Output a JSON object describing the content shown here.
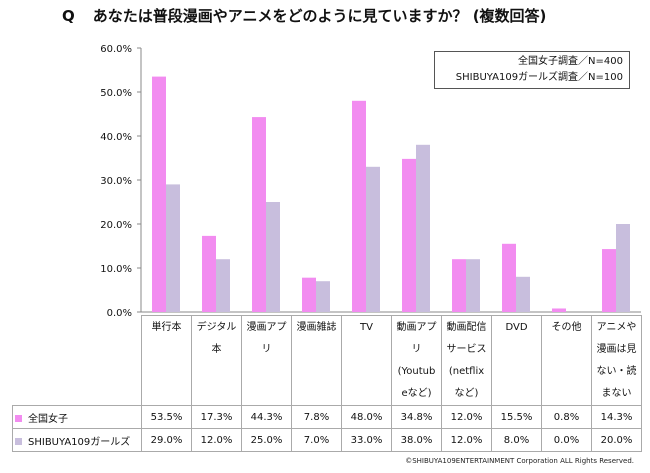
{
  "header": {
    "q_label": "Q",
    "title": "あなたは普段漫画やアニメをどのように見ていますか？ (複数回答)"
  },
  "legend": {
    "line1": "全国女子調査／N=400",
    "line2": "SHIBUYA109ガールズ調査／N=100"
  },
  "copyright": "©SHIBUYA109ENTERTAINMENT Corporation ALL Rights Reserved.",
  "chart_data": {
    "type": "bar",
    "title": "あなたは普段漫画やアニメをどのように見ていますか？ (複数回答)",
    "categories": [
      "単行本",
      "デジタル本",
      "漫画アプリ",
      "漫画雑誌",
      "TV",
      "動画アプリ(Youtubeなど)",
      "動画配信サービス(netflixなど)",
      "DVD",
      "その他",
      "アニメや漫画は見ない・読まない"
    ],
    "category_lines": [
      [
        "単行本"
      ],
      [
        "デジタル",
        "本"
      ],
      [
        "漫画アプ",
        "リ"
      ],
      [
        "漫画雑誌"
      ],
      [
        "TV"
      ],
      [
        "動画アプリ",
        "(Youtub",
        "eなど)"
      ],
      [
        "動画配信",
        "サービス",
        "(netflix",
        "など)"
      ],
      [
        "DVD"
      ],
      [
        "その他"
      ],
      [
        "アニメや",
        "漫画は見",
        "ない・読",
        "まない"
      ]
    ],
    "series": [
      {
        "name": "全国女子",
        "color": "#f28cf0",
        "values": [
          53.5,
          17.3,
          44.3,
          7.8,
          48.0,
          34.8,
          12.0,
          15.5,
          0.8,
          14.3
        ],
        "labels": [
          "53.5%",
          "17.3%",
          "44.3%",
          "7.8%",
          "48.0%",
          "34.8%",
          "12.0%",
          "15.5%",
          "0.8%",
          "14.3%"
        ]
      },
      {
        "name": "SHIBUYA109ガールズ",
        "color": "#c8bedd",
        "values": [
          29.0,
          12.0,
          25.0,
          7.0,
          33.0,
          38.0,
          12.0,
          8.0,
          0.0,
          20.0
        ],
        "labels": [
          "29.0%",
          "12.0%",
          "25.0%",
          "7.0%",
          "33.0%",
          "38.0%",
          "12.0%",
          "8.0%",
          "0.0%",
          "20.0%"
        ]
      }
    ],
    "yticks": [
      0,
      10,
      20,
      30,
      40,
      50,
      60
    ],
    "ytick_labels": [
      "0.0%",
      "10.0%",
      "20.0%",
      "30.0%",
      "40.0%",
      "50.0%",
      "60.0%"
    ],
    "ylim": [
      0,
      60
    ],
    "xlabel": "",
    "ylabel": "",
    "grid": false,
    "legend_position": "top-right"
  }
}
